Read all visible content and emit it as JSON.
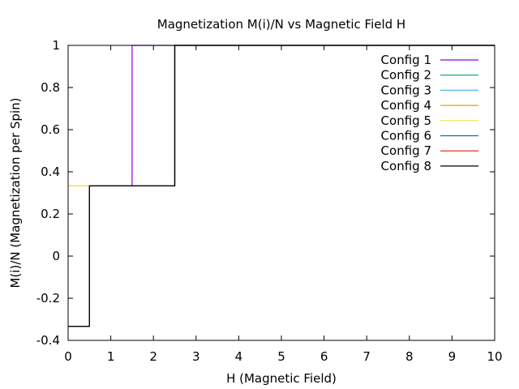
{
  "chart_data": {
    "type": "line",
    "title": "Magnetization M(i)/N vs Magnetic Field H",
    "xlabel": "H (Magnetic Field)",
    "ylabel": "M(i)/N (Magnetization per Spin)",
    "xlim": [
      0,
      10
    ],
    "ylim": [
      -0.4,
      1
    ],
    "xticks": [
      0,
      1,
      2,
      3,
      4,
      5,
      6,
      7,
      8,
      9,
      10
    ],
    "xtick_labels": [
      "0",
      "1",
      "2",
      "3",
      "4",
      "5",
      "6",
      "7",
      "8",
      "9",
      "10"
    ],
    "yticks": [
      -0.4,
      -0.2,
      0,
      0.2,
      0.4,
      0.6,
      0.8,
      1
    ],
    "ytick_labels": [
      "-0.4",
      "-0.2",
      "0",
      "0.2",
      "0.4",
      "0.6",
      "0.8",
      "1"
    ],
    "grid": false,
    "legend_position": "top-right",
    "series": [
      {
        "name": "Config 1",
        "color": "#9400d3",
        "x": [
          0,
          0.5,
          0.5,
          1.5,
          1.5,
          10
        ],
        "y": [
          -0.333,
          -0.333,
          0.333,
          0.333,
          1,
          1
        ]
      },
      {
        "name": "Config 2",
        "color": "#009e73",
        "x": [
          0,
          0.5,
          0.5,
          2.5,
          2.5,
          10
        ],
        "y": [
          -0.333,
          -0.333,
          0.333,
          0.333,
          1,
          1
        ]
      },
      {
        "name": "Config 3",
        "color": "#56b4e9",
        "x": [
          0,
          0.5,
          0.5,
          2.5,
          2.5,
          10
        ],
        "y": [
          -0.333,
          -0.333,
          0.333,
          0.333,
          1,
          1
        ]
      },
      {
        "name": "Config 4",
        "color": "#e69f00",
        "x": [
          0,
          0.5,
          0.5,
          2.5,
          2.5,
          10
        ],
        "y": [
          0.333,
          0.333,
          0.333,
          0.333,
          1,
          1
        ]
      },
      {
        "name": "Config 5",
        "color": "#f0e442",
        "x": [
          0,
          0.5,
          0.5,
          2.5,
          2.5,
          10
        ],
        "y": [
          0.333,
          0.333,
          0.333,
          0.333,
          1,
          1
        ]
      },
      {
        "name": "Config 6",
        "color": "#0072b2",
        "x": [
          0,
          0.5,
          0.5,
          2.5,
          2.5,
          10
        ],
        "y": [
          -0.333,
          -0.333,
          0.333,
          0.333,
          1,
          1
        ]
      },
      {
        "name": "Config 7",
        "color": "#e51e10",
        "x": [
          0,
          0.5,
          0.5,
          2.5,
          2.5,
          10
        ],
        "y": [
          -0.333,
          -0.333,
          0.333,
          0.333,
          1,
          1
        ]
      },
      {
        "name": "Config 8",
        "color": "#000000",
        "x": [
          0,
          0.5,
          0.5,
          2.5,
          2.5,
          10
        ],
        "y": [
          -0.333,
          -0.333,
          0.333,
          0.333,
          1,
          1
        ]
      }
    ]
  }
}
